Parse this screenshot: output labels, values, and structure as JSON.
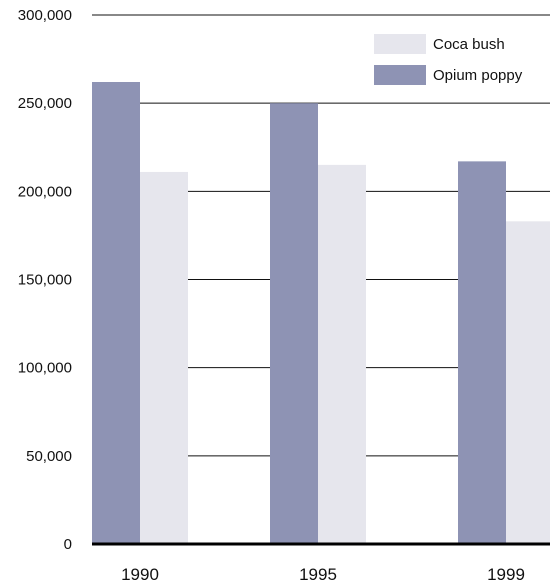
{
  "chart_data": {
    "type": "bar",
    "categories": [
      "1990",
      "1995",
      "1999"
    ],
    "series": [
      {
        "name": "Opium poppy",
        "values": [
          262000,
          250000,
          217000
        ],
        "color": "#8e93b4"
      },
      {
        "name": "Coca bush",
        "values": [
          211000,
          215000,
          183000
        ],
        "color": "#e6e6ed"
      }
    ],
    "ylim": [
      0,
      300000
    ],
    "yticks": [
      0,
      50000,
      100000,
      150000,
      200000,
      250000,
      300000
    ],
    "ytick_labels": [
      "0",
      "50,000",
      "100,000",
      "150,000",
      "200,000",
      "250,000",
      "300,000"
    ],
    "grid": true,
    "legend_position": "top-right",
    "legend_order": [
      "Coca bush",
      "Opium poppy"
    ]
  }
}
